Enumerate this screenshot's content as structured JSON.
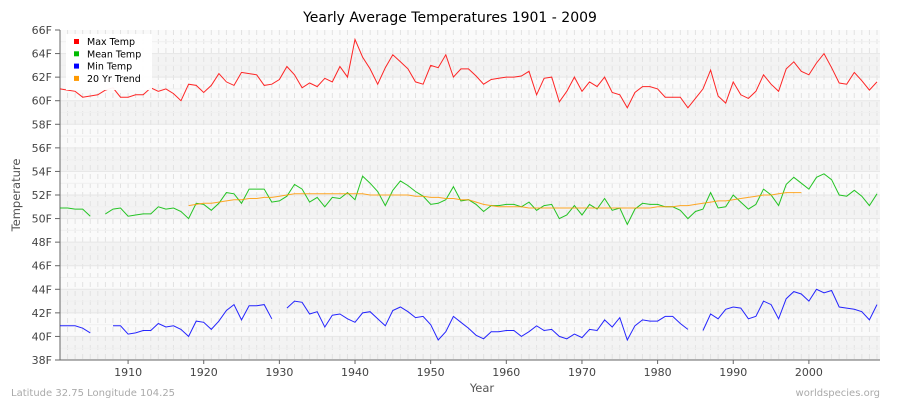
{
  "chart_data": {
    "type": "line",
    "title": "Yearly Average Temperatures 1901 - 2009",
    "xlabel": "Year",
    "ylabel": "Temperature",
    "xlim": [
      1901,
      2009.4
    ],
    "ylim": [
      38,
      66
    ],
    "xticks": [
      1910,
      1920,
      1930,
      1940,
      1950,
      1960,
      1970,
      1980,
      1990,
      2000
    ],
    "yticks": [
      "38F",
      "40F",
      "42F",
      "44F",
      "46F",
      "48F",
      "50F",
      "52F",
      "54F",
      "56F",
      "58F",
      "60F",
      "62F",
      "64F",
      "66F"
    ],
    "grid": true,
    "legend_position": "top-left",
    "x_start": 1901,
    "series": [
      {
        "name": "Max Temp",
        "color": "#ff0000",
        "values": [
          61.0,
          60.9,
          60.8,
          60.3,
          60.4,
          60.5,
          60.9,
          61.1,
          60.3,
          60.3,
          60.5,
          60.5,
          61.1,
          60.8,
          61.0,
          60.6,
          60.0,
          61.4,
          61.3,
          60.7,
          61.3,
          62.3,
          61.6,
          61.3,
          62.4,
          62.3,
          62.2,
          61.3,
          61.4,
          61.8,
          62.9,
          62.2,
          61.1,
          61.5,
          61.2,
          61.9,
          61.6,
          62.9,
          62.0,
          65.2,
          63.7,
          62.7,
          61.4,
          62.8,
          63.9,
          63.3,
          62.7,
          61.6,
          61.4,
          63.0,
          62.8,
          63.9,
          62.0,
          62.7,
          62.7,
          62.1,
          61.4,
          61.8,
          61.9,
          62.0,
          62.0,
          62.1,
          62.5,
          60.5,
          61.9,
          62.0,
          59.9,
          60.8,
          62.0,
          60.8,
          61.6,
          61.2,
          62.0,
          60.7,
          60.5,
          59.4,
          60.7,
          61.2,
          61.2,
          61.0,
          60.3,
          60.3,
          60.3,
          59.4,
          60.2,
          61.0,
          62.6,
          60.4,
          59.8,
          61.6,
          60.5,
          60.2,
          60.8,
          62.2,
          61.4,
          60.8,
          62.7,
          63.3,
          62.5,
          62.2,
          63.2,
          64.0,
          62.8,
          61.5,
          61.4,
          62.4,
          61.7,
          60.9,
          61.6
        ]
      },
      {
        "name": "Mean Temp",
        "color": "#00bb00",
        "values": [
          50.9,
          50.9,
          50.8,
          50.8,
          50.2,
          null,
          50.4,
          50.8,
          50.9,
          50.2,
          50.3,
          50.4,
          50.4,
          51.0,
          50.8,
          50.9,
          50.6,
          50.0,
          51.3,
          51.2,
          50.7,
          51.3,
          52.2,
          52.1,
          51.3,
          52.5,
          52.5,
          52.5,
          51.4,
          51.5,
          51.9,
          52.9,
          52.5,
          51.4,
          51.8,
          51.0,
          51.8,
          51.7,
          52.2,
          51.6,
          53.6,
          53.0,
          52.3,
          51.1,
          52.4,
          53.2,
          52.8,
          52.3,
          51.9,
          51.2,
          51.3,
          51.6,
          52.7,
          51.5,
          51.6,
          51.2,
          50.6,
          51.1,
          51.1,
          51.2,
          51.2,
          51.0,
          51.4,
          50.7,
          51.1,
          51.2,
          50.0,
          50.3,
          51.1,
          50.3,
          51.2,
          50.8,
          51.7,
          50.7,
          50.9,
          49.5,
          50.8,
          51.3,
          51.2,
          51.2,
          51.0,
          51.0,
          50.7,
          50.0,
          50.6,
          50.8,
          52.2,
          50.9,
          51.0,
          52.0,
          51.4,
          50.8,
          51.2,
          52.5,
          52.0,
          51.1,
          52.9,
          53.5,
          53.0,
          52.5,
          53.5,
          53.8,
          53.3,
          52.0,
          51.9,
          52.4,
          51.9,
          51.1,
          52.1
        ]
      },
      {
        "name": "Min Temp",
        "color": "#0000ff",
        "values": [
          40.9,
          40.9,
          40.9,
          40.7,
          40.3,
          null,
          null,
          40.9,
          40.9,
          40.2,
          40.3,
          40.5,
          40.5,
          41.1,
          40.8,
          40.9,
          40.6,
          40.0,
          41.3,
          41.2,
          40.6,
          41.3,
          42.2,
          42.7,
          41.4,
          42.6,
          42.6,
          42.7,
          41.5,
          null,
          42.4,
          43.0,
          42.9,
          41.9,
          42.1,
          40.8,
          41.8,
          41.9,
          41.5,
          41.2,
          42.0,
          42.1,
          41.5,
          40.9,
          42.2,
          42.5,
          42.1,
          41.6,
          41.7,
          41.0,
          39.7,
          40.4,
          41.7,
          41.2,
          40.7,
          40.1,
          39.8,
          40.4,
          40.4,
          40.5,
          40.5,
          40.0,
          40.4,
          40.9,
          40.5,
          40.6,
          40.0,
          39.8,
          40.2,
          39.9,
          40.6,
          40.5,
          41.4,
          40.8,
          41.6,
          39.7,
          40.9,
          41.4,
          41.3,
          41.3,
          41.7,
          41.7,
          41.1,
          40.6,
          null,
          40.5,
          41.9,
          41.5,
          42.3,
          42.5,
          42.4,
          41.5,
          41.7,
          43.0,
          42.7,
          41.5,
          43.2,
          43.8,
          43.6,
          43.0,
          44.0,
          43.7,
          43.9,
          42.5,
          42.4,
          42.3,
          42.1,
          41.4,
          42.7
        ]
      },
      {
        "name": "20 Yr Trend",
        "color": "#ff9900",
        "x_start": 1918,
        "values": [
          51.1,
          51.2,
          51.3,
          51.3,
          51.4,
          51.5,
          51.6,
          51.6,
          51.7,
          51.7,
          51.8,
          51.8,
          51.9,
          52.0,
          52.1,
          52.1,
          52.1,
          52.1,
          52.1,
          52.1,
          52.1,
          52.1,
          52.1,
          52.1,
          52.0,
          52.0,
          52.0,
          52.0,
          52.0,
          52.0,
          51.9,
          51.9,
          51.8,
          51.8,
          51.7,
          51.7,
          51.6,
          51.6,
          51.4,
          51.2,
          51.1,
          51.0,
          51.0,
          51.0,
          51.0,
          50.9,
          50.9,
          50.9,
          50.9,
          50.9,
          50.9,
          50.9,
          50.9,
          50.9,
          50.9,
          50.9,
          50.9,
          50.9,
          50.9,
          50.9,
          50.9,
          50.9,
          51.0,
          51.0,
          51.0,
          51.1,
          51.1,
          51.2,
          51.3,
          51.4,
          51.5,
          51.5,
          51.6,
          51.7,
          51.8,
          51.9,
          52.0,
          52.0,
          52.1,
          52.2,
          52.2,
          52.2
        ]
      }
    ]
  },
  "footer": {
    "location": "Latitude 32.75 Longitude 104.25",
    "source": "worldspecies.org"
  }
}
